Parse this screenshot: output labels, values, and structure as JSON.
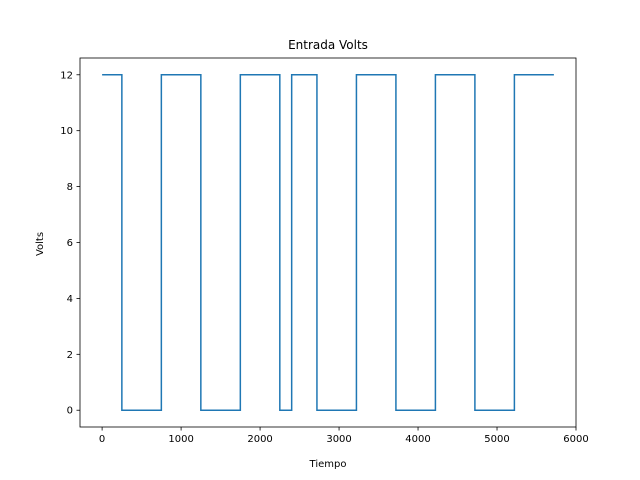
{
  "chart_data": {
    "type": "line",
    "title": "Entrada Volts",
    "xlabel": "Tiempo",
    "ylabel": "Volts",
    "xlim": [
      -280,
      6000
    ],
    "ylim": [
      -0.6,
      12.6
    ],
    "xticks": [
      0,
      1000,
      2000,
      3000,
      4000,
      5000,
      6000
    ],
    "yticks": [
      0,
      2,
      4,
      6,
      8,
      10,
      12
    ],
    "grid": false,
    "series": [
      {
        "color": "#1f77b4",
        "step": true,
        "x": [
          0,
          250,
          250,
          750,
          750,
          1250,
          1250,
          1750,
          1750,
          2250,
          2250,
          2400,
          2400,
          2720,
          2720,
          3220,
          3220,
          3720,
          3720,
          4220,
          4220,
          4720,
          4720,
          5220,
          5220,
          5720
        ],
        "y": [
          12,
          12,
          0,
          0,
          12,
          12,
          0,
          0,
          12,
          12,
          0,
          0,
          12,
          12,
          0,
          0,
          12,
          12,
          0,
          0,
          12,
          12,
          0,
          0,
          12,
          12
        ]
      }
    ]
  }
}
